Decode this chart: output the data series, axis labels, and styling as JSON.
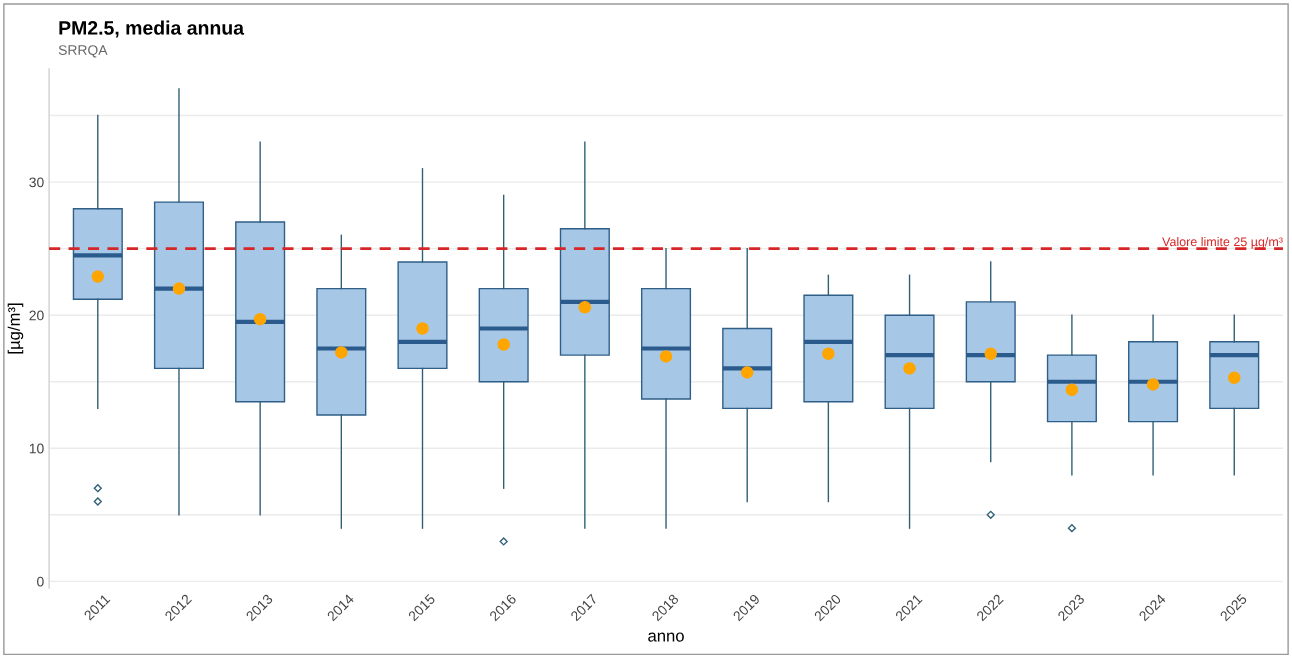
{
  "chart_data": {
    "type": "box",
    "title": "PM2.5, media annua",
    "subtitle": "SRRQA",
    "xlabel": "anno",
    "ylabel": "[µg/m³]",
    "categories": [
      "2011",
      "2012",
      "2013",
      "2014",
      "2015",
      "2016",
      "2017",
      "2018",
      "2019",
      "2020",
      "2021",
      "2022",
      "2023",
      "2024",
      "2025"
    ],
    "series": [
      {
        "color": "#a7c7e7",
        "boxes": [
          {
            "low": 13,
            "q1": 21.2,
            "median": 24.5,
            "q3": 28,
            "high": 35,
            "mean": 22.9,
            "outliers": [
              7,
              6
            ]
          },
          {
            "low": 5,
            "q1": 16,
            "median": 22,
            "q3": 28.5,
            "high": 37,
            "mean": 22
          },
          {
            "low": 5,
            "q1": 13.5,
            "median": 19.5,
            "q3": 27,
            "high": 33,
            "mean": 19.7
          },
          {
            "low": 4,
            "q1": 12.5,
            "median": 17.5,
            "q3": 22,
            "high": 26,
            "mean": 17.2
          },
          {
            "low": 4,
            "q1": 16,
            "median": 18,
            "q3": 24,
            "high": 31,
            "mean": 19
          },
          {
            "low": 7,
            "q1": 15,
            "median": 19,
            "q3": 22,
            "high": 29,
            "mean": 17.8,
            "outliers": [
              3
            ]
          },
          {
            "low": 4,
            "q1": 17,
            "median": 21,
            "q3": 26.5,
            "high": 33,
            "mean": 20.6
          },
          {
            "low": 4,
            "q1": 13.7,
            "median": 17.5,
            "q3": 22,
            "high": 25,
            "mean": 16.9
          },
          {
            "low": 6,
            "q1": 13,
            "median": 16,
            "q3": 19,
            "high": 25,
            "mean": 15.7
          },
          {
            "low": 6,
            "q1": 13.5,
            "median": 18,
            "q3": 21.5,
            "high": 23,
            "mean": 17.1
          },
          {
            "low": 4,
            "q1": 13,
            "median": 17,
            "q3": 20,
            "high": 23,
            "mean": 16
          },
          {
            "low": 9,
            "q1": 15,
            "median": 17,
            "q3": 21,
            "high": 24,
            "mean": 17.1,
            "outliers": [
              5
            ]
          },
          {
            "low": 8,
            "q1": 12,
            "median": 15,
            "q3": 17,
            "high": 20,
            "mean": 14.4,
            "outliers": [
              4
            ]
          },
          {
            "low": 8,
            "q1": 12,
            "median": 15,
            "q3": 18,
            "high": 20,
            "mean": 14.8
          },
          {
            "low": 8,
            "q1": 13,
            "median": 17,
            "q3": 18,
            "high": 20,
            "mean": 15.3
          }
        ]
      }
    ],
    "ylim": [
      -0.5,
      38.5
    ],
    "yticks": [
      0,
      {
        "value": 5,
        "label": null
      },
      10,
      {
        "value": 15,
        "label": null
      },
      20,
      {
        "value": 25,
        "label": null
      },
      30,
      {
        "value": 35,
        "label": null
      }
    ],
    "grid": "y",
    "ref_lines": [
      {
        "axis": "y",
        "value": 25,
        "label": "Valore limite 25 µg/m³",
        "color": "#d62728",
        "line_style": "dashed"
      }
    ]
  }
}
